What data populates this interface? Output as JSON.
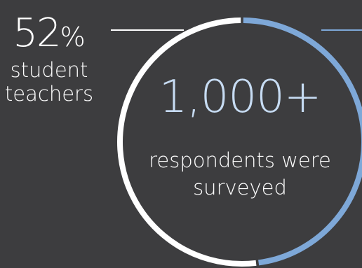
{
  "chart_data": {
    "type": "pie",
    "style": "donut-ring",
    "slices": [
      {
        "label": "student teachers",
        "value": 52,
        "color": "#ffffff"
      },
      {
        "value": 48,
        "color": "#7ea8d8"
      }
    ],
    "callout": {
      "value": "52",
      "unit": "%",
      "label_lines": [
        "student",
        "teachers"
      ]
    },
    "center": {
      "headline": "1,000+",
      "text_lines": [
        "respondents were",
        "surveyed"
      ]
    }
  },
  "colors": {
    "background": "#3d3d3f",
    "ring_white": "#ffffff",
    "ring_blue": "#7ea8d8",
    "headline": "#c7dcf3"
  }
}
